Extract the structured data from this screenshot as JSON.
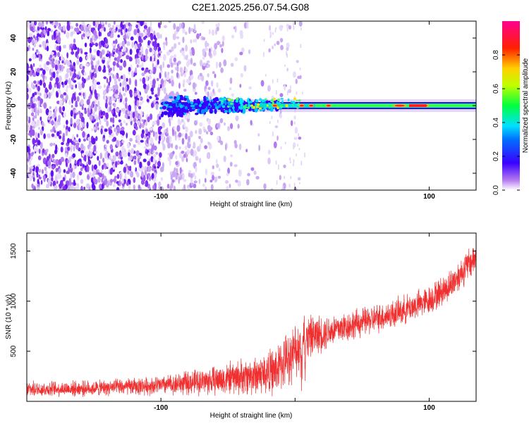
{
  "chart_data": [
    {
      "type": "heatmap",
      "title": "C2E1.2025.256.07.54.G08",
      "xlabel": "Height of straight line (km)",
      "ylabel": "Frequency (Hz)",
      "xlim": [
        -200,
        135
      ],
      "ylim": [
        -50,
        50
      ],
      "x_ticks": [
        -100,
        0,
        100
      ],
      "x_tick_labels": [
        "-100",
        "",
        "100"
      ],
      "y_ticks": [
        -40,
        -20,
        0,
        20,
        40
      ],
      "y_tick_labels": [
        "-40",
        "-20",
        "0",
        "20",
        "40"
      ],
      "colorbar": {
        "label": "Normalized spectral amplitude",
        "range": [
          0,
          1
        ],
        "ticks": [
          0.0,
          0.2,
          0.4,
          0.6,
          0.8
        ],
        "tick_labels": [
          "0.0",
          "0.2",
          "0.4",
          "0.6",
          "0.8"
        ],
        "colors": [
          "#ffffff",
          "#b478f0",
          "#3a00ff",
          "#00e0ff",
          "#00ff40",
          "#ffff00",
          "#ff8000",
          "#ff0000",
          "#ff00a0"
        ]
      },
      "ridge": {
        "frequency_hz": 0,
        "x_range": [
          -100,
          135
        ],
        "hot_spots_x": [
          -15,
          5,
          12,
          25,
          78,
          90,
          95
        ]
      },
      "grid": false
    },
    {
      "type": "line",
      "xlabel": "Height of straight line (km)",
      "ylabel": "SNR (10 * v/v)",
      "xlim": [
        -200,
        135
      ],
      "ylim": [
        0,
        1680
      ],
      "x_ticks": [
        -100,
        0,
        100
      ],
      "x_tick_labels": [
        "-100",
        "",
        "100"
      ],
      "y_ticks": [
        500,
        1000,
        1500
      ],
      "y_tick_labels": [
        "500",
        "1000",
        "1500"
      ],
      "color": "#f03030",
      "trend": {
        "x": [
          -200,
          -150,
          -100,
          -60,
          -30,
          -15,
          -10,
          0,
          10,
          25,
          50,
          75,
          100,
          115,
          135
        ],
        "y": [
          120,
          130,
          160,
          210,
          260,
          300,
          370,
          500,
          640,
          700,
          790,
          880,
          1010,
          1150,
          1450
        ]
      },
      "noise_amplitude": [
        90,
        90,
        110,
        170,
        230,
        280,
        300,
        320,
        250,
        200,
        170,
        170,
        170,
        180,
        200
      ],
      "grid": false
    }
  ]
}
